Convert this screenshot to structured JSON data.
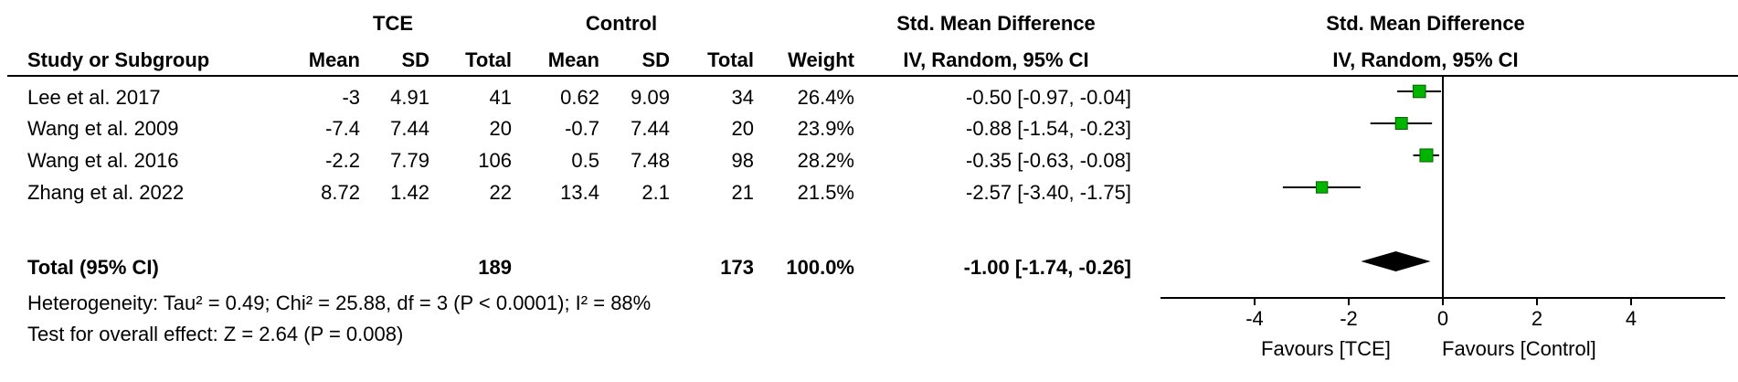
{
  "chart_data": {
    "type": "forest",
    "headers": {
      "group1": "TCE",
      "group2": "Control",
      "effect_col_title": "Std. Mean Difference",
      "effect_col_sub": "IV, Random, 95% CI",
      "plot_title": "Std. Mean Difference",
      "plot_sub": "IV, Random, 95% CI",
      "study": "Study or Subgroup",
      "mean": "Mean",
      "sd": "SD",
      "total": "Total",
      "weight": "Weight"
    },
    "studies": [
      {
        "name": "Lee et al. 2017",
        "mean1": "-3",
        "sd1": "4.91",
        "n1": "41",
        "mean2": "0.62",
        "sd2": "9.09",
        "n2": "34",
        "weight": "26.4%",
        "ci_text": "-0.50 [-0.97, -0.04]",
        "est": -0.5,
        "lo": -0.97,
        "hi": -0.04,
        "w": 26.4
      },
      {
        "name": "Wang et al. 2009",
        "mean1": "-7.4",
        "sd1": "7.44",
        "n1": "20",
        "mean2": "-0.7",
        "sd2": "7.44",
        "n2": "20",
        "weight": "23.9%",
        "ci_text": "-0.88 [-1.54, -0.23]",
        "est": -0.88,
        "lo": -1.54,
        "hi": -0.23,
        "w": 23.9
      },
      {
        "name": "Wang et al. 2016",
        "mean1": "-2.2",
        "sd1": "7.79",
        "n1": "106",
        "mean2": "0.5",
        "sd2": "7.48",
        "n2": "98",
        "weight": "28.2%",
        "ci_text": "-0.35 [-0.63, -0.08]",
        "est": -0.35,
        "lo": -0.63,
        "hi": -0.08,
        "w": 28.2
      },
      {
        "name": "Zhang et al. 2022",
        "mean1": "8.72",
        "sd1": "1.42",
        "n1": "22",
        "mean2": "13.4",
        "sd2": "2.1",
        "n2": "21",
        "weight": "21.5%",
        "ci_text": "-2.57 [-3.40, -1.75]",
        "est": -2.57,
        "lo": -3.4,
        "hi": -1.75,
        "w": 21.5
      }
    ],
    "total": {
      "label": "Total (95% CI)",
      "n1": "189",
      "n2": "173",
      "weight": "100.0%",
      "ci_text": "-1.00 [-1.74, -0.26]",
      "est": -1.0,
      "lo": -1.74,
      "hi": -0.26
    },
    "heterogeneity": "Heterogeneity: Tau² = 0.49; Chi² = 25.88, df = 3 (P < 0.0001); I² = 88%",
    "overall_effect": "Test for overall effect: Z = 2.64 (P = 0.008)",
    "x_axis": {
      "min": -6,
      "max": 6,
      "ticks": [
        -4,
        -2,
        0,
        2,
        4
      ],
      "tick_labels": [
        "-4",
        "-2",
        "0",
        "2",
        "4"
      ]
    },
    "favours_left": "Favours [TCE]",
    "favours_right": "Favours [Control]",
    "marker_color": "#00b400"
  }
}
